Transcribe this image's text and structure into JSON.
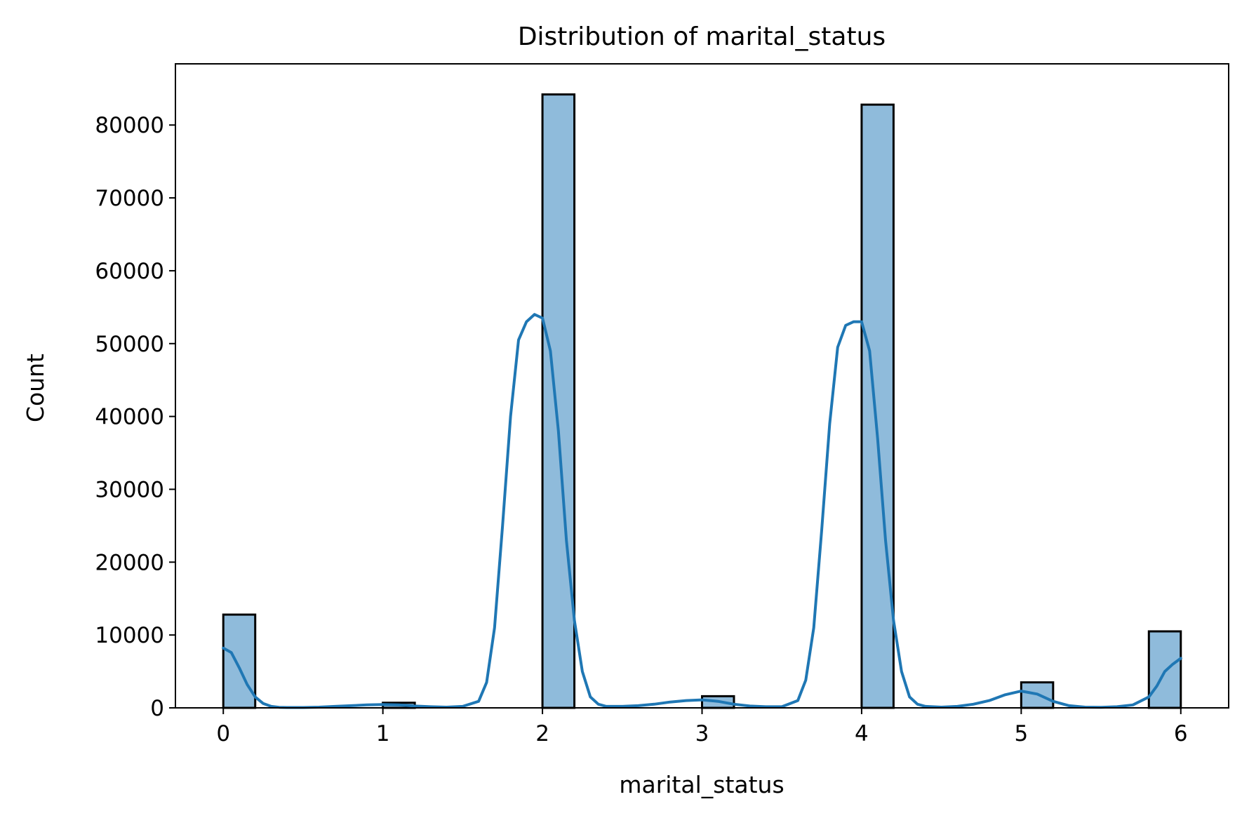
{
  "chart_data": {
    "type": "bar",
    "title": "Distribution of marital_status",
    "xlabel": "marital_status",
    "ylabel": "Count",
    "xlim": [
      -0.3,
      6.3
    ],
    "ylim": [
      0,
      88400
    ],
    "x_ticks": [
      0,
      1,
      2,
      3,
      4,
      5,
      6
    ],
    "y_ticks": [
      0,
      10000,
      20000,
      30000,
      40000,
      50000,
      60000,
      70000,
      80000
    ],
    "grid": false,
    "legend": "none",
    "bin_width": 0.2,
    "bins": [
      {
        "x0": 0.0,
        "x1": 0.2,
        "count": 12800
      },
      {
        "x0": 1.0,
        "x1": 1.2,
        "count": 700
      },
      {
        "x0": 2.0,
        "x1": 2.2,
        "count": 84200
      },
      {
        "x0": 3.0,
        "x1": 3.2,
        "count": 1600
      },
      {
        "x0": 4.0,
        "x1": 4.2,
        "count": 82800
      },
      {
        "x0": 5.0,
        "x1": 5.2,
        "count": 3500
      },
      {
        "x0": 5.8,
        "x1": 6.0,
        "count": 10500
      }
    ],
    "kde": {
      "x": [
        0.0,
        0.05,
        0.1,
        0.15,
        0.2,
        0.25,
        0.3,
        0.35,
        0.4,
        0.5,
        0.6,
        0.7,
        0.8,
        0.9,
        1.0,
        1.1,
        1.2,
        1.3,
        1.4,
        1.5,
        1.6,
        1.65,
        1.7,
        1.75,
        1.8,
        1.85,
        1.9,
        1.95,
        2.0,
        2.05,
        2.1,
        2.15,
        2.2,
        2.25,
        2.3,
        2.35,
        2.4,
        2.5,
        2.6,
        2.7,
        2.8,
        2.9,
        3.0,
        3.1,
        3.2,
        3.3,
        3.4,
        3.5,
        3.6,
        3.65,
        3.7,
        3.75,
        3.8,
        3.85,
        3.9,
        3.95,
        4.0,
        4.05,
        4.1,
        4.15,
        4.2,
        4.25,
        4.3,
        4.35,
        4.4,
        4.5,
        4.6,
        4.7,
        4.8,
        4.9,
        5.0,
        5.1,
        5.2,
        5.3,
        5.4,
        5.5,
        5.6,
        5.7,
        5.8,
        5.85,
        5.9,
        5.95,
        6.0
      ],
      "y": [
        8200,
        7600,
        5500,
        3200,
        1500,
        600,
        200,
        80,
        50,
        50,
        100,
        200,
        300,
        400,
        450,
        400,
        250,
        150,
        100,
        200,
        900,
        3500,
        11000,
        25000,
        40000,
        50500,
        53000,
        54000,
        53500,
        49000,
        38000,
        23000,
        12000,
        5000,
        1500,
        500,
        200,
        200,
        300,
        500,
        800,
        1000,
        1100,
        900,
        500,
        250,
        150,
        150,
        1000,
        3800,
        11000,
        24500,
        39000,
        49500,
        52500,
        53000,
        53000,
        49000,
        37000,
        23000,
        12000,
        5000,
        1500,
        500,
        200,
        100,
        200,
        500,
        1000,
        1800,
        2300,
        1900,
        900,
        300,
        100,
        80,
        150,
        400,
        1500,
        3000,
        5000,
        6000,
        6800
      ]
    },
    "colors": {
      "bar_fill": "#8fbbdb",
      "bar_edge": "#000000",
      "kde_line": "#1f77b4"
    }
  }
}
